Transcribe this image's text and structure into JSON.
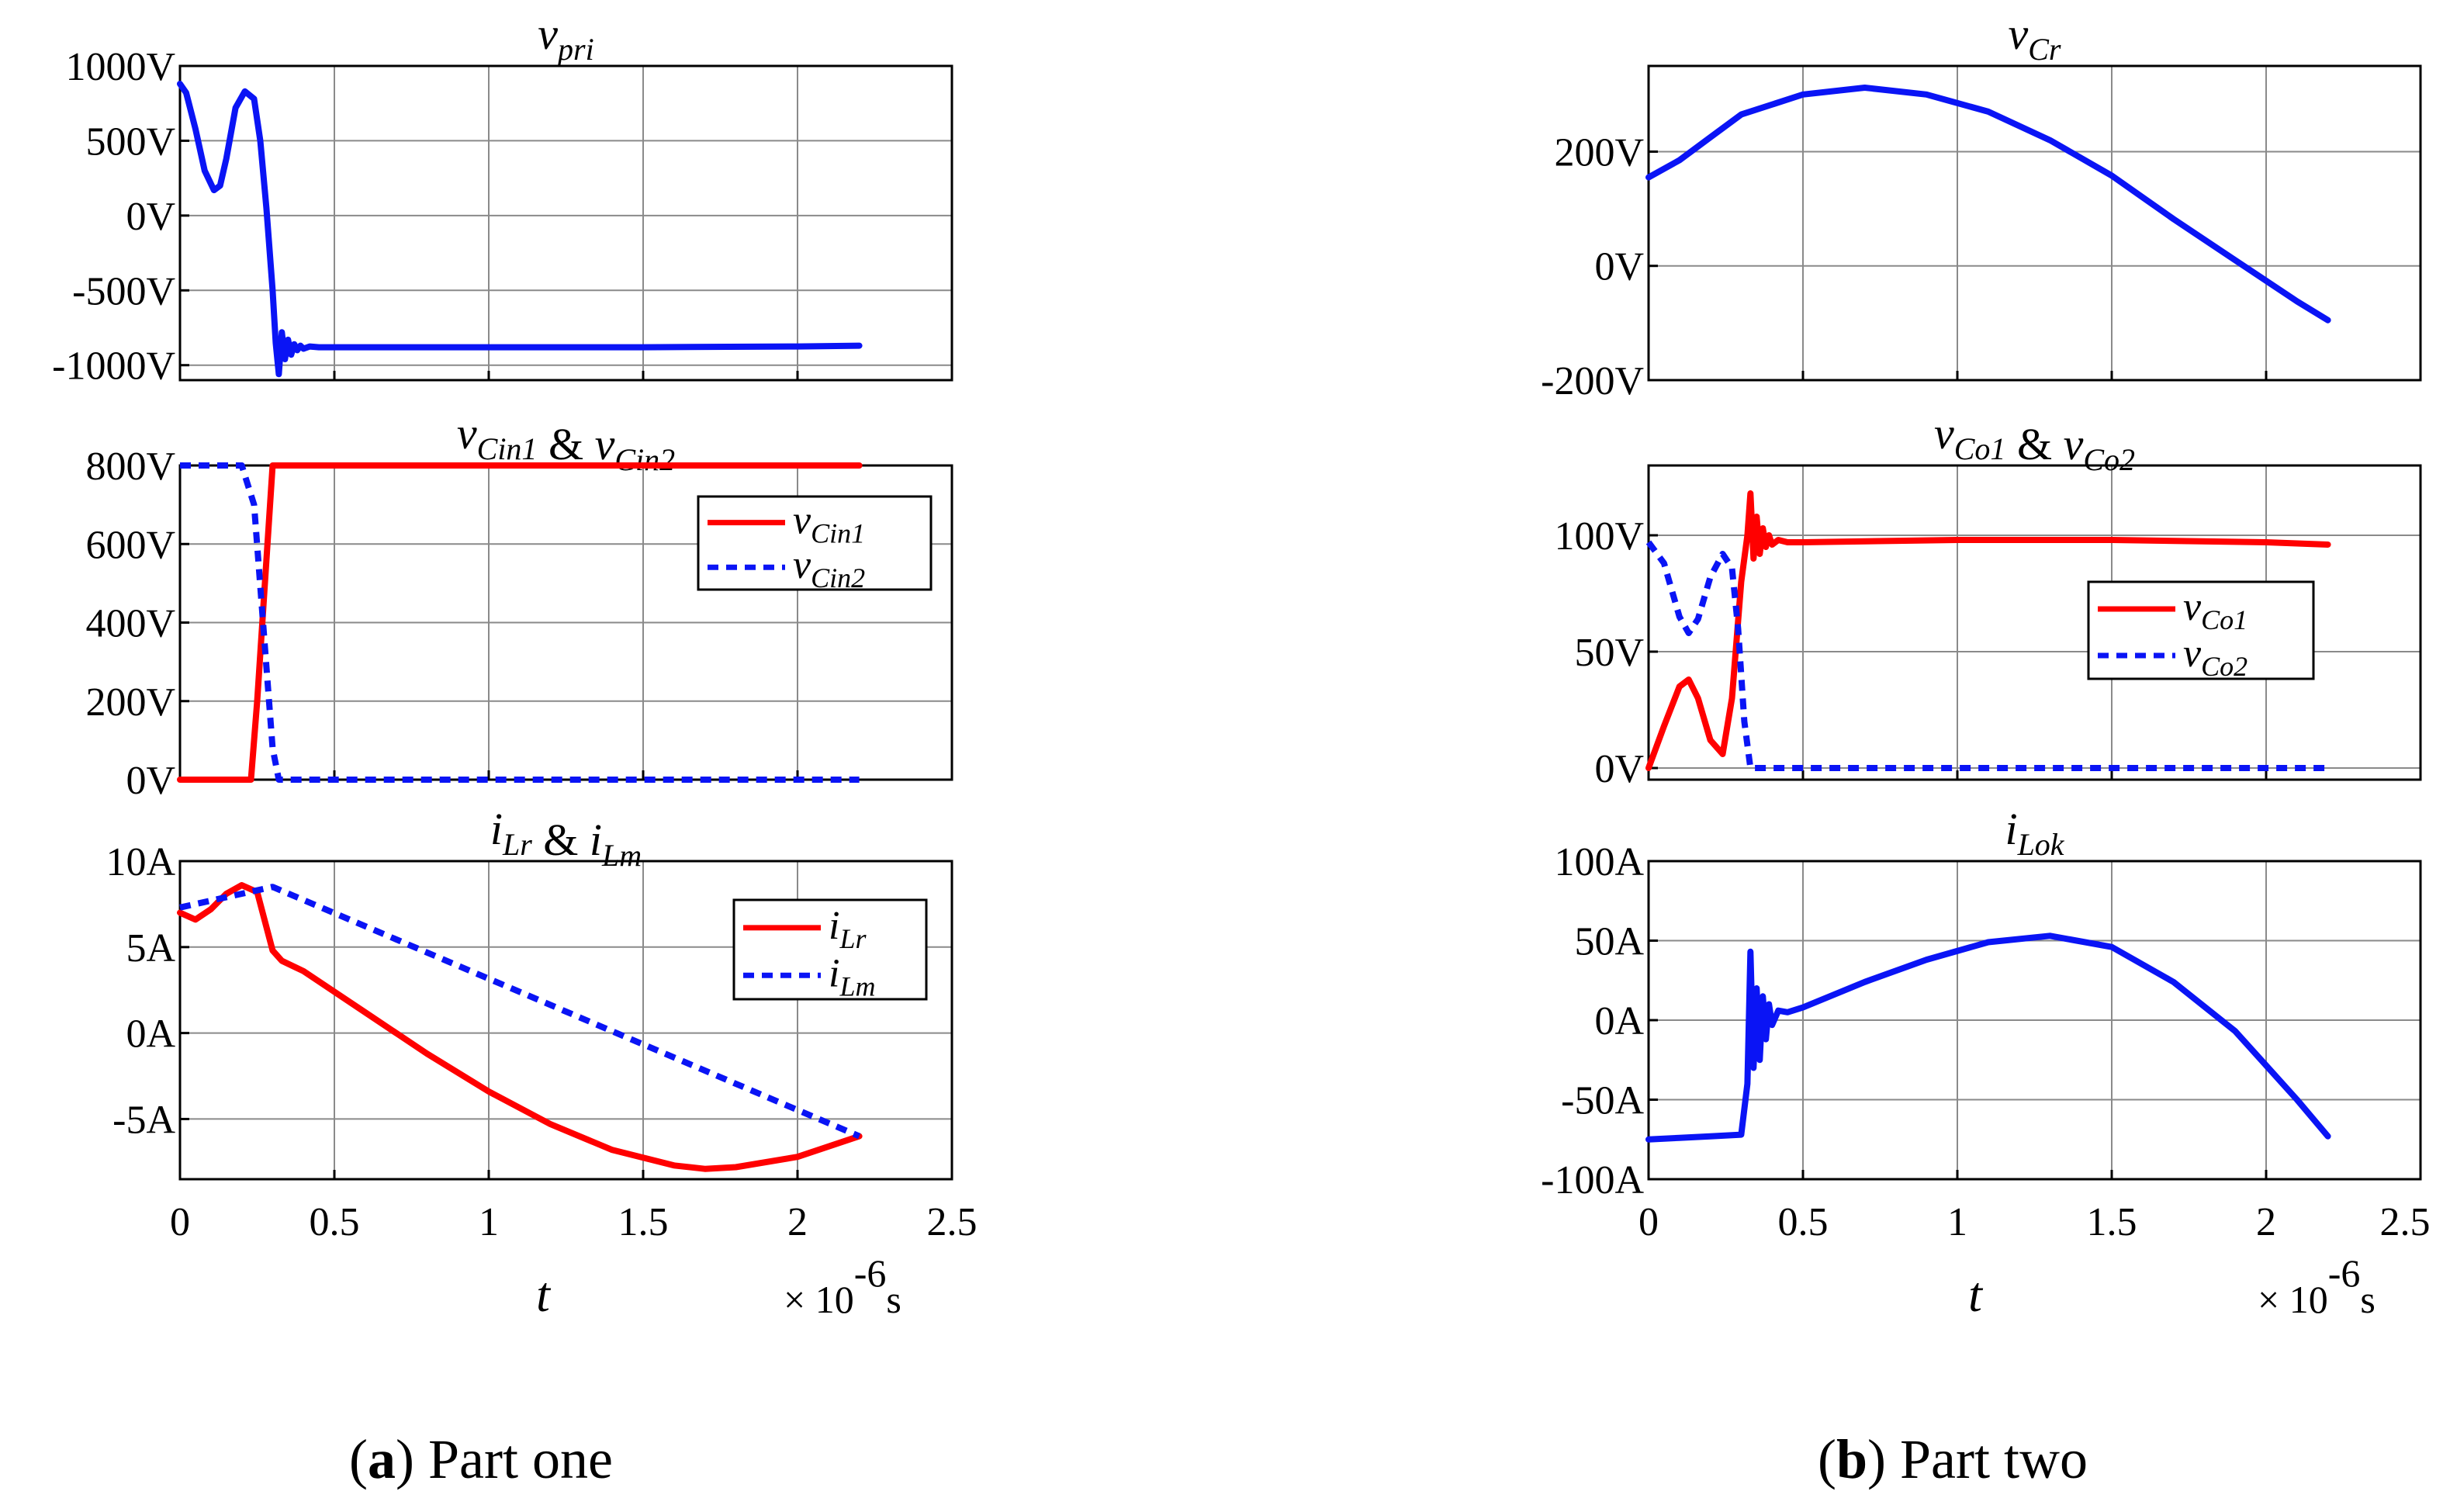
{
  "colors": {
    "red": "#ff0000",
    "blue": "#0a14f5",
    "grid": "#8a8a8a",
    "axis": "#000000"
  },
  "x_axis": {
    "label": "t",
    "multiplier_prefix": "× 10",
    "multiplier_exponent": "-6",
    "unit": "s",
    "range": [
      0,
      2.5
    ],
    "ticks": [
      0,
      0.5,
      1,
      1.5,
      2,
      2.5
    ],
    "tick_labels": [
      "0",
      "0.5",
      "1",
      "1.5",
      "2",
      "2.5"
    ]
  },
  "captions": {
    "a": {
      "letter": "a",
      "text": " Part one",
      "open": "(",
      "close": ")"
    },
    "b": {
      "letter": "b",
      "text": " Part two",
      "open": "(",
      "close": ")"
    }
  },
  "chart_data": [
    {
      "id": "vpri",
      "type": "line",
      "column": "a",
      "title": {
        "main": "v",
        "sub": "pri",
        "rest": []
      },
      "ylim": [
        -1100,
        1000
      ],
      "grid": true,
      "yticks": [
        -1000,
        -500,
        0,
        500,
        1000
      ],
      "ytick_labels": [
        "-1000V",
        "-500V",
        "0V",
        "500V",
        "1000V"
      ],
      "legend": null,
      "series": [
        {
          "name": "v_pri",
          "color": "blue",
          "dash": false,
          "x": [
            0,
            0.02,
            0.05,
            0.08,
            0.11,
            0.13,
            0.15,
            0.18,
            0.21,
            0.24,
            0.26,
            0.28,
            0.3,
            0.31,
            0.32,
            0.33,
            0.34,
            0.35,
            0.36,
            0.37,
            0.38,
            0.39,
            0.4,
            0.42,
            0.45,
            0.5,
            1.0,
            1.5,
            2.0,
            2.2
          ],
          "y": [
            880,
            820,
            580,
            300,
            170,
            200,
            380,
            720,
            830,
            780,
            500,
            50,
            -500,
            -850,
            -1060,
            -780,
            -960,
            -830,
            -930,
            -860,
            -900,
            -870,
            -890,
            -875,
            -880,
            -880,
            -880,
            -880,
            -875,
            -870
          ]
        }
      ]
    },
    {
      "id": "vcin",
      "type": "line",
      "column": "a",
      "title": {
        "main": "v",
        "sub": "Cin1",
        "rest": [
          " & ",
          "v",
          "Cin2"
        ]
      },
      "ylim": [
        0,
        800
      ],
      "grid": true,
      "yticks": [
        0,
        200,
        400,
        600,
        800
      ],
      "ytick_labels": [
        "0V",
        "200V",
        "400V",
        "600V",
        "800V"
      ],
      "legend": {
        "position": "top-right",
        "entries": [
          {
            "main": "v",
            "sub": "Cin1",
            "series": 0
          },
          {
            "main": "v",
            "sub": "Cin2",
            "series": 1
          }
        ]
      },
      "series": [
        {
          "name": "v_Cin1",
          "color": "red",
          "dash": false,
          "x": [
            0,
            0.23,
            0.25,
            0.3,
            2.2
          ],
          "y": [
            0,
            0,
            200,
            800,
            800
          ]
        },
        {
          "name": "v_Cin2",
          "color": "blue",
          "dash": true,
          "x": [
            0,
            0.2,
            0.24,
            0.3,
            0.32,
            2.2
          ],
          "y": [
            800,
            800,
            700,
            80,
            0,
            0
          ]
        }
      ]
    },
    {
      "id": "ilr",
      "type": "line",
      "column": "a",
      "title": {
        "main": "i",
        "sub": "Lr",
        "rest": [
          " & ",
          "i",
          "Lm"
        ]
      },
      "ylim": [
        -8.5,
        10
      ],
      "grid": true,
      "yticks": [
        -5,
        0,
        5,
        10
      ],
      "ytick_labels": [
        "-5A",
        "0A",
        "5A",
        "10A"
      ],
      "legend": {
        "position": "top-right",
        "entries": [
          {
            "main": "i",
            "sub": "Lr",
            "series": 0
          },
          {
            "main": "i",
            "sub": "Lm",
            "series": 1
          }
        ]
      },
      "series": [
        {
          "name": "i_Lr",
          "color": "red",
          "dash": false,
          "x": [
            0,
            0.05,
            0.1,
            0.15,
            0.2,
            0.25,
            0.3,
            0.33,
            0.4,
            0.6,
            0.8,
            1.0,
            1.2,
            1.4,
            1.6,
            1.7,
            1.8,
            2.0,
            2.2
          ],
          "y": [
            7.0,
            6.6,
            7.2,
            8.1,
            8.6,
            8.2,
            4.8,
            4.2,
            3.6,
            1.2,
            -1.2,
            -3.4,
            -5.3,
            -6.8,
            -7.7,
            -7.9,
            -7.8,
            -7.2,
            -6.0
          ]
        },
        {
          "name": "i_Lm",
          "color": "blue",
          "dash": true,
          "x": [
            0,
            0.3,
            2.2
          ],
          "y": [
            7.3,
            8.5,
            -6.0
          ]
        }
      ]
    },
    {
      "id": "vcr",
      "type": "line",
      "column": "b",
      "title": {
        "main": "v",
        "sub": "Cr",
        "rest": []
      },
      "ylim": [
        -200,
        350
      ],
      "grid": true,
      "yticks": [
        -200,
        0,
        200
      ],
      "ytick_labels": [
        "-200V",
        "0V",
        "200V"
      ],
      "legend": null,
      "series": [
        {
          "name": "v_Cr",
          "color": "blue",
          "dash": false,
          "x": [
            0,
            0.1,
            0.2,
            0.3,
            0.5,
            0.7,
            0.9,
            1.1,
            1.3,
            1.5,
            1.7,
            1.9,
            2.1,
            2.2
          ],
          "y": [
            155,
            185,
            225,
            265,
            300,
            312,
            300,
            270,
            220,
            158,
            82,
            10,
            -62,
            -95
          ]
        }
      ]
    },
    {
      "id": "vco",
      "type": "line",
      "column": "b",
      "title": {
        "main": "v",
        "sub": "Co1",
        "rest": [
          " & ",
          "v",
          "Co2"
        ]
      },
      "ylim": [
        -5,
        130
      ],
      "grid": true,
      "yticks": [
        0,
        50,
        100
      ],
      "ytick_labels": [
        "0V",
        "50V",
        "100V"
      ],
      "legend": {
        "position": "right",
        "entries": [
          {
            "main": "v",
            "sub": "Co1",
            "series": 0
          },
          {
            "main": "v",
            "sub": "Co2",
            "series": 1
          }
        ]
      },
      "series": [
        {
          "name": "v_Co1",
          "color": "red",
          "dash": false,
          "x": [
            0,
            0.05,
            0.1,
            0.13,
            0.16,
            0.2,
            0.24,
            0.27,
            0.3,
            0.32,
            0.33,
            0.34,
            0.35,
            0.36,
            0.37,
            0.38,
            0.39,
            0.4,
            0.42,
            0.45,
            0.5,
            1.0,
            1.5,
            2.0,
            2.2
          ],
          "y": [
            0,
            18,
            35,
            38,
            30,
            12,
            6,
            30,
            80,
            100,
            118,
            90,
            108,
            92,
            103,
            95,
            100,
            96,
            98,
            97,
            97,
            98,
            98,
            97,
            96
          ]
        },
        {
          "name": "v_Co2",
          "color": "blue",
          "dash": true,
          "x": [
            0,
            0.05,
            0.1,
            0.13,
            0.16,
            0.2,
            0.24,
            0.27,
            0.29,
            0.31,
            0.33,
            2.2
          ],
          "y": [
            97,
            88,
            65,
            58,
            64,
            82,
            92,
            86,
            60,
            20,
            0,
            0
          ]
        }
      ]
    },
    {
      "id": "ilok",
      "type": "line",
      "column": "b",
      "title": {
        "main": "i",
        "sub": "Lok",
        "rest": []
      },
      "ylim": [
        -100,
        100
      ],
      "grid": true,
      "yticks": [
        -100,
        -50,
        0,
        50,
        100
      ],
      "ytick_labels": [
        "-100A",
        "-50A",
        "0A",
        "50A",
        "100A"
      ],
      "legend": null,
      "series": [
        {
          "name": "i_Lok",
          "color": "blue",
          "dash": false,
          "x": [
            0,
            0.1,
            0.2,
            0.3,
            0.32,
            0.33,
            0.34,
            0.35,
            0.36,
            0.37,
            0.38,
            0.39,
            0.4,
            0.42,
            0.45,
            0.5,
            0.7,
            0.9,
            1.1,
            1.3,
            1.5,
            1.7,
            1.9,
            2.1,
            2.2
          ],
          "y": [
            -75,
            -74,
            -73,
            -72,
            -40,
            43,
            -30,
            20,
            -25,
            15,
            -12,
            10,
            -3,
            6,
            5,
            8,
            24,
            38,
            49,
            53,
            46,
            24,
            -7,
            -50,
            -73
          ]
        }
      ]
    }
  ]
}
